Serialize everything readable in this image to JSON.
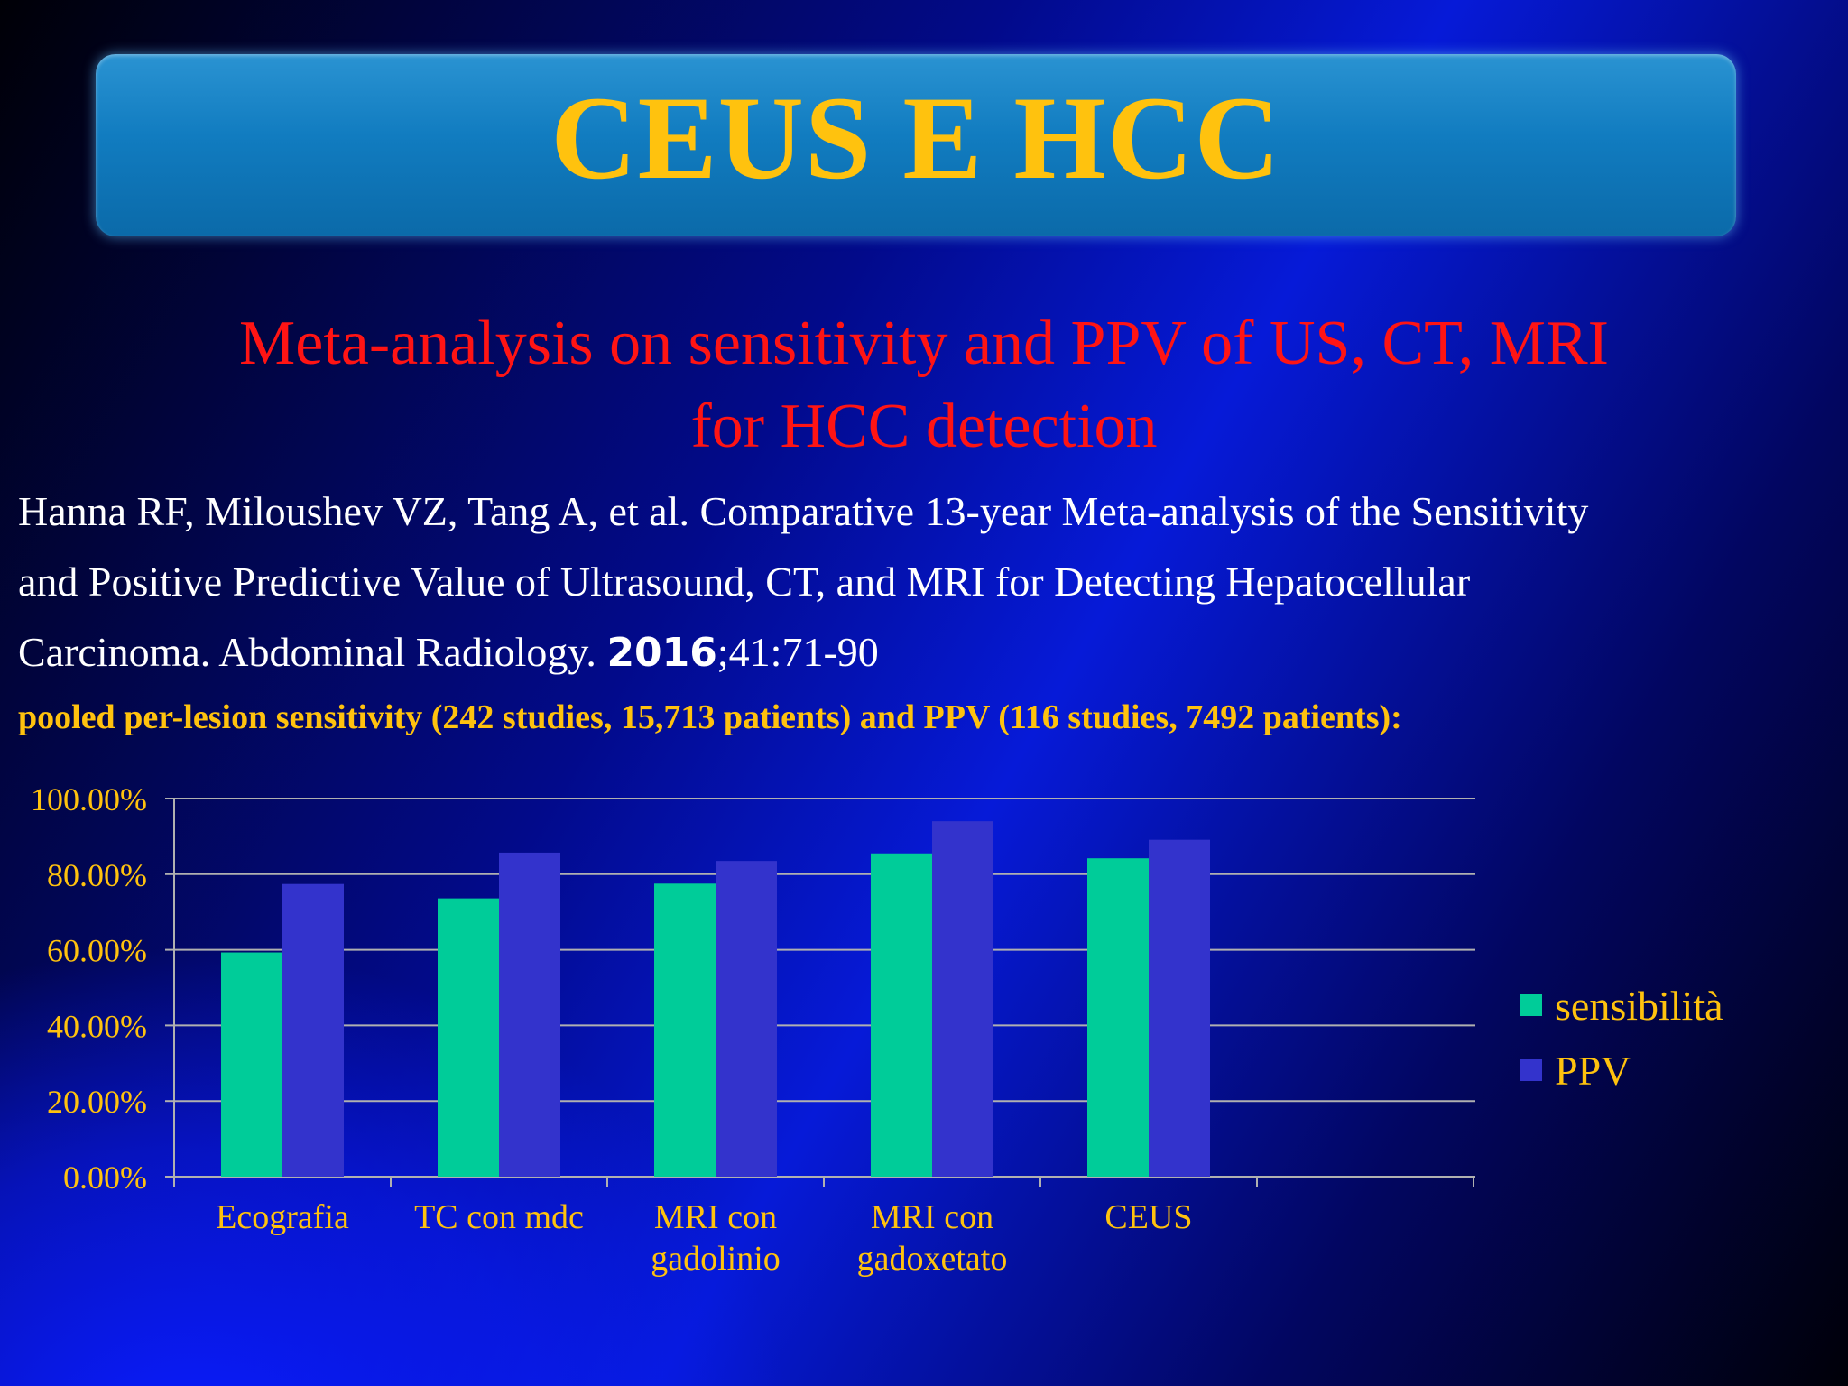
{
  "slide": {
    "title": "CEUS E HCC",
    "subtitle_line1": "Meta-analysis on sensitivity and PPV of US, CT, MRI",
    "subtitle_line2": "for HCC detection",
    "citation_line1": "Hanna RF, Miloushev VZ, Tang A, et al. Comparative 13-year Meta-analysis of the Sensitivity",
    "citation_line2": "and Positive Predictive Value of Ultrasound, CT, and MRI for Detecting Hepatocellular",
    "citation_line3_pre": "Carcinoma. Abdominal Radiology. ",
    "citation_year": "2016",
    "citation_line3_post": ";41:71-90",
    "pooled_note": "pooled per-lesion sensitivity (242 studies, 15,713 patients) and PPV (116 studies, 7492 patients):"
  },
  "chart_data": {
    "type": "bar",
    "categories": [
      "Ecografia",
      "TC con mdc",
      "MRI con gadolinio",
      "MRI con gadoxetato",
      "CEUS"
    ],
    "category_lines": [
      [
        "Ecografia"
      ],
      [
        "TC con mdc"
      ],
      [
        "MRI con",
        "gadolinio"
      ],
      [
        "MRI con",
        "gadoxetato"
      ],
      [
        "CEUS"
      ]
    ],
    "series": [
      {
        "name": "sensibilità",
        "values": [
          59.3,
          73.6,
          77.5,
          85.5,
          84.2
        ],
        "color": "#00cc99"
      },
      {
        "name": "PPV",
        "values": [
          77.4,
          85.7,
          83.5,
          94.0,
          89.1
        ],
        "color": "#3333cc"
      }
    ],
    "ylim": [
      0,
      100
    ],
    "yticks": [
      "0.00%",
      "20.00%",
      "40.00%",
      "60.00%",
      "80.00%",
      "100.00%"
    ],
    "grid": true,
    "legend_position": "right",
    "text_color": "#ffc20e",
    "grid_color": "#b0b0b0"
  }
}
